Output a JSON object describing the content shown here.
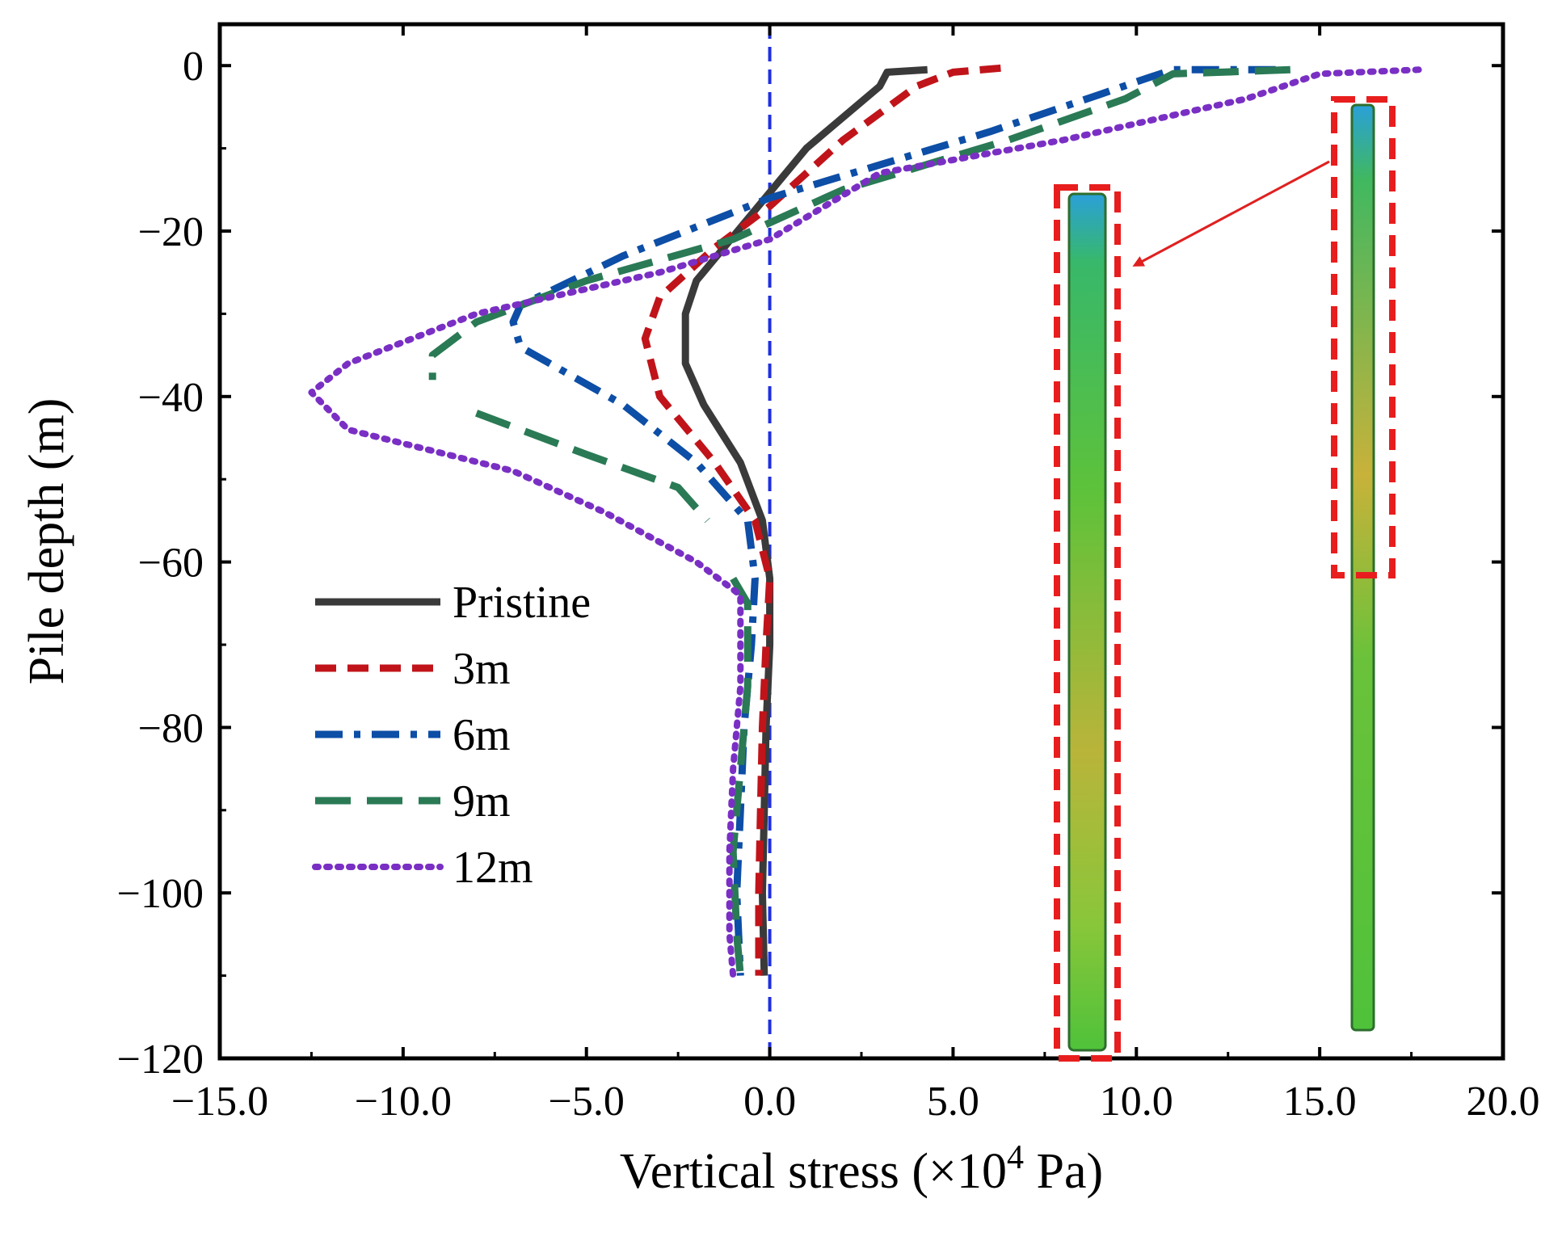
{
  "chart_data": {
    "type": "line",
    "xlabel": "Vertical stress (×10",
    "xlabel_sup": "4",
    "xlabel_unit": " Pa)",
    "ylabel": "Pile depth (m)",
    "xlim": [
      -15,
      20
    ],
    "ylim": [
      -120,
      5
    ],
    "xticks": [
      -15,
      -10,
      -5,
      0,
      5,
      10,
      15,
      20
    ],
    "xtick_labels": [
      "−15.0",
      "−10.0",
      "−5.0",
      "0.0",
      "5.0",
      "10.0",
      "15.0",
      "20.0"
    ],
    "yticks": [
      0,
      -20,
      -40,
      -60,
      -80,
      -100,
      -120
    ],
    "ytick_labels": [
      "0",
      "−20",
      "−40",
      "−60",
      "−80",
      "−100",
      "−120"
    ],
    "reference_line": {
      "x": 0,
      "color": "#1f2fe0",
      "style": "dashed"
    },
    "legend_position": "left-middle",
    "series": [
      {
        "name": "Pristine",
        "color": "#3a3a3a",
        "style": "solid",
        "points": [
          [
            4.3,
            -0.5
          ],
          [
            3.2,
            -0.8
          ],
          [
            3.0,
            -2.5
          ],
          [
            1.0,
            -10
          ],
          [
            -0.5,
            -18
          ],
          [
            -2.0,
            -26
          ],
          [
            -2.3,
            -30
          ],
          [
            -2.3,
            -36
          ],
          [
            -1.8,
            -41
          ],
          [
            -0.8,
            -48
          ],
          [
            -0.2,
            -55
          ],
          [
            0.0,
            -62
          ],
          [
            0.0,
            -70
          ],
          [
            -0.1,
            -80
          ],
          [
            -0.15,
            -90
          ],
          [
            -0.2,
            -100
          ],
          [
            -0.15,
            -110
          ]
        ]
      },
      {
        "name": "3m",
        "color": "#c0141a",
        "style": "dashed",
        "points": [
          [
            6.3,
            -0.3
          ],
          [
            5.0,
            -0.8
          ],
          [
            4.0,
            -2.5
          ],
          [
            2.0,
            -9
          ],
          [
            0.0,
            -17
          ],
          [
            -1.5,
            -22
          ],
          [
            -3.0,
            -28
          ],
          [
            -3.4,
            -33
          ],
          [
            -3.0,
            -40
          ],
          [
            -1.5,
            -48
          ],
          [
            -0.4,
            -55
          ],
          [
            0.0,
            -62
          ],
          [
            -0.1,
            -70
          ],
          [
            -0.2,
            -80
          ],
          [
            -0.25,
            -90
          ],
          [
            -0.3,
            -100
          ],
          [
            -0.3,
            -110
          ]
        ]
      },
      {
        "name": "6m",
        "color": "#0d4ea6",
        "style": "dashdot",
        "points": [
          [
            13.8,
            -0.5
          ],
          [
            11.0,
            -0.5
          ],
          [
            10.3,
            -1.5
          ],
          [
            9.0,
            -3.5
          ],
          [
            6.0,
            -8
          ],
          [
            3.0,
            -12
          ],
          [
            0.0,
            -16
          ],
          [
            -4.0,
            -23
          ],
          [
            -6.8,
            -29
          ],
          [
            -7.0,
            -31
          ],
          [
            -6.8,
            -34
          ],
          [
            -4.0,
            -41
          ],
          [
            -2.0,
            -48
          ],
          [
            -0.6,
            -55
          ],
          [
            -0.4,
            -62
          ],
          [
            -0.5,
            -70
          ],
          [
            -0.7,
            -80
          ],
          [
            -0.8,
            -90
          ],
          [
            -0.9,
            -100
          ],
          [
            -0.8,
            -110
          ]
        ]
      },
      {
        "name": "9m",
        "color": "#2a7a55",
        "style": "longdash",
        "points": [
          [
            14.2,
            -0.5
          ],
          [
            11.0,
            -1.0
          ],
          [
            9.7,
            -4.0
          ],
          [
            6.5,
            -9
          ],
          [
            2.0,
            -15
          ],
          [
            -1.0,
            -21
          ],
          [
            -5.0,
            -26
          ],
          [
            -8.0,
            -31
          ],
          [
            -9.2,
            -35
          ],
          [
            -9.2,
            -38
          ],
          null,
          [
            -8.0,
            -42
          ],
          [
            -5.0,
            -47
          ],
          [
            -2.5,
            -51
          ],
          [
            -1.7,
            -55
          ],
          null,
          [
            -1.0,
            -62
          ],
          [
            -0.6,
            -65
          ],
          [
            -0.6,
            -75
          ],
          [
            -0.8,
            -85
          ],
          [
            -1.0,
            -95
          ],
          [
            -0.9,
            -105
          ],
          [
            -0.8,
            -110
          ]
        ]
      },
      {
        "name": "12m",
        "color": "#7a2fc4",
        "style": "dotted",
        "points": [
          [
            17.7,
            -0.5
          ],
          [
            15.0,
            -1.0
          ],
          [
            13.0,
            -4.0
          ],
          [
            8.0,
            -9
          ],
          [
            3.0,
            -13
          ],
          [
            0.0,
            -21
          ],
          [
            -3.0,
            -25
          ],
          [
            -8.0,
            -30
          ],
          [
            -11.5,
            -36
          ],
          [
            -12.5,
            -39.5
          ],
          [
            -11.5,
            -44
          ],
          [
            -7.0,
            -49
          ],
          [
            -4.5,
            -54
          ],
          [
            -2.0,
            -60
          ],
          [
            -0.8,
            -64
          ],
          [
            -0.8,
            -75
          ],
          [
            -1.0,
            -85
          ],
          [
            -1.1,
            -95
          ],
          [
            -1.1,
            -105
          ],
          [
            -1.0,
            -110
          ]
        ]
      }
    ]
  }
}
